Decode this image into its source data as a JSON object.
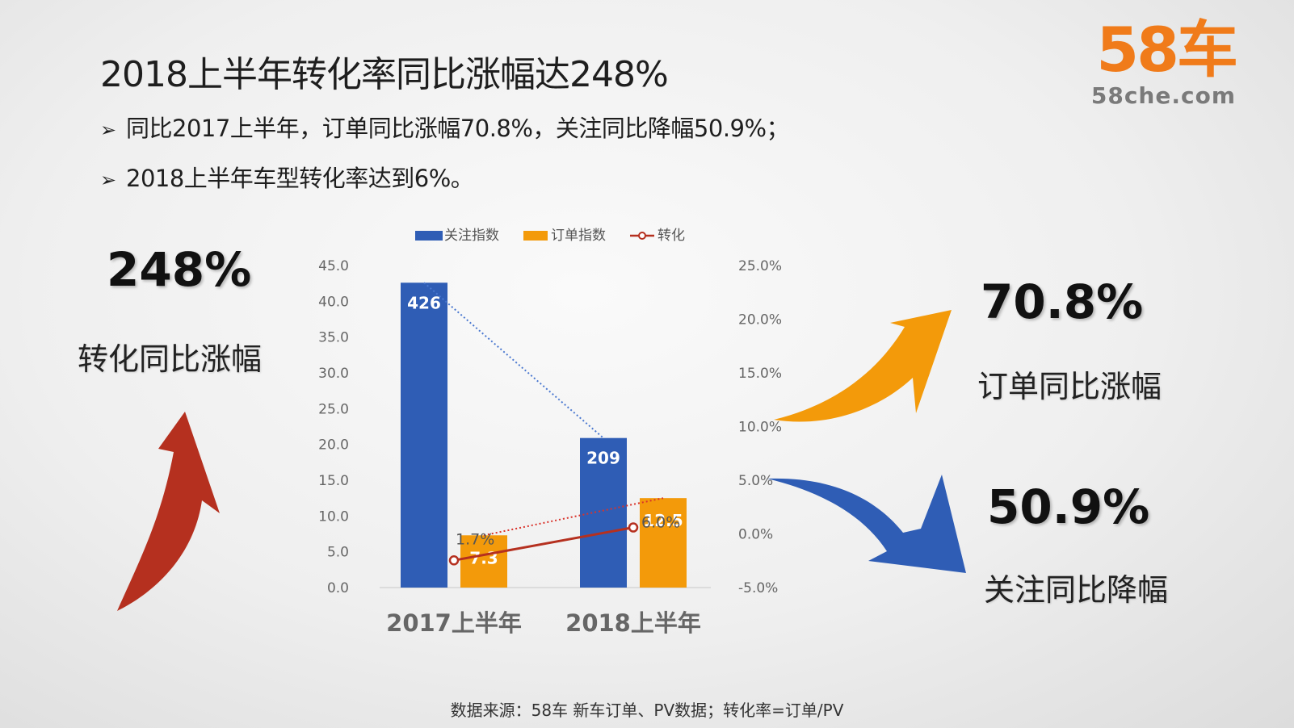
{
  "slide": {
    "title": "2018上半年转化率同比涨幅达248%",
    "bullets": [
      "同比2017上半年，订单同比涨幅70.8%，关注同比降幅50.9%；",
      "2018上半年车型转化率达到6%。"
    ],
    "bullet_mark": "➢",
    "footer": "数据来源：58车 新车订单、PV数据；转化率=订单/PV"
  },
  "logo": {
    "main": "58车",
    "sub": "58che.com"
  },
  "callouts": {
    "left": {
      "value": "248%",
      "label": "转化同比涨幅",
      "arrow_color": "#b5301f",
      "arrow_icon": "up-arrow-icon"
    },
    "top_right": {
      "value": "70.8%",
      "label": "订单同比涨幅",
      "arrow_color": "#f39a0a",
      "arrow_icon": "up-right-arrow-icon"
    },
    "bottom_right": {
      "value": "50.9%",
      "label": "关注同比降幅",
      "arrow_color": "#2f5db5",
      "arrow_icon": "down-right-arrow-icon"
    }
  },
  "chart_data": {
    "type": "bar",
    "categories": [
      "2017上半年",
      "2018上半年"
    ],
    "series": [
      {
        "name": "关注指数",
        "kind": "bar",
        "axis": "left",
        "plot_values": [
          42.6,
          20.9
        ],
        "labels": [
          "426",
          "209"
        ],
        "color": "#2f5db5"
      },
      {
        "name": "订单指数",
        "kind": "bar",
        "axis": "left",
        "plot_values": [
          7.3,
          12.5
        ],
        "labels": [
          "7.3",
          "12.5"
        ],
        "color": "#f39a0a"
      },
      {
        "name": "转化",
        "kind": "line",
        "axis": "right",
        "values": [
          1.7,
          6.0
        ],
        "plot_values": [
          3.8,
          8.4
        ],
        "labels": [
          "1.7%",
          "6.0%"
        ],
        "color": "#b5301f"
      }
    ],
    "y_left": {
      "ticks": [
        "0.0",
        "5.0",
        "10.0",
        "15.0",
        "20.0",
        "25.0",
        "30.0",
        "35.0",
        "40.0",
        "45.0"
      ],
      "range": [
        0,
        45
      ]
    },
    "y_right": {
      "ticks": [
        "-5.0%",
        "0.0%",
        "5.0%",
        "10.0%",
        "15.0%",
        "20.0%",
        "25.0%"
      ],
      "range": [
        -5,
        25
      ]
    },
    "trendlines": [
      {
        "series": "关注指数",
        "color": "#4a78d0",
        "from": [
          0,
          42.6
        ],
        "to": [
          1,
          20.9
        ]
      },
      {
        "series": "订单指数",
        "color": "#d9332b",
        "from": [
          0,
          7.3
        ],
        "to": [
          1,
          12.5
        ]
      }
    ],
    "legend": "top-center",
    "grid": false
  }
}
